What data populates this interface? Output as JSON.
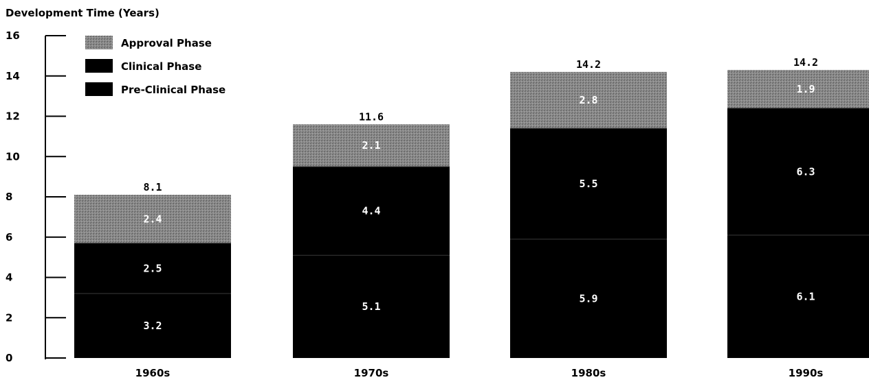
{
  "chart_data": {
    "type": "bar",
    "stacked": true,
    "ylabel": "Development Time (Years)",
    "ylim": [
      0,
      16
    ],
    "yticks": [
      0,
      2,
      4,
      6,
      8,
      10,
      12,
      14,
      16
    ],
    "categories": [
      "1960s",
      "1970s",
      "1980s",
      "1990s"
    ],
    "series": [
      {
        "name": "Pre-Clinical Phase",
        "values": [
          3.2,
          5.1,
          5.9,
          6.1
        ],
        "color": "#000000"
      },
      {
        "name": "Clinical Phase",
        "values": [
          2.5,
          4.4,
          5.5,
          6.3
        ],
        "color": "#000000"
      },
      {
        "name": "Approval Phase",
        "values": [
          2.4,
          2.1,
          2.8,
          1.9
        ],
        "color": "#7a7a7a"
      }
    ],
    "totals": [
      "8.1",
      "11.6",
      "14.2",
      "14.2"
    ],
    "segment_labels": [
      [
        "3.2",
        "2.5",
        "2.4"
      ],
      [
        "5.1",
        "4.4",
        "2.1"
      ],
      [
        "5.9",
        "5.5",
        "2.8"
      ],
      [
        "6.1",
        "6.3",
        "1.9"
      ]
    ],
    "legend": {
      "placement": "top-left",
      "entries": [
        {
          "label": "Approval Phase",
          "color": "#7a7a7a"
        },
        {
          "label": "Clinical Phase",
          "color": "#000000"
        },
        {
          "label": "Pre-Clinical Phase",
          "color": "#000000"
        }
      ]
    },
    "grid": false
  }
}
